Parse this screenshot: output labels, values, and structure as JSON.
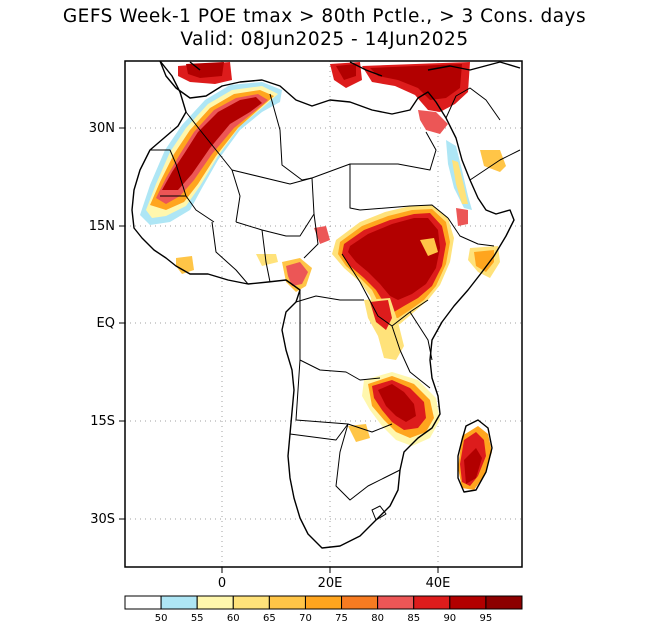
{
  "title": {
    "line1": "GEFS Week-1 POE tmax > 80th Pctle., > 3 Cons. days",
    "line2": "Valid: 08Jun2025 - 14Jun2025"
  },
  "map": {
    "lat_labels": [
      "30N",
      "15N",
      "EQ",
      "15S",
      "30S"
    ],
    "lon_labels": [
      "0",
      "20E",
      "40E"
    ]
  },
  "colorbar": {
    "labels": [
      "50",
      "55",
      "60",
      "65",
      "70",
      "75",
      "80",
      "85",
      "90",
      "95"
    ],
    "colors": [
      "#ffffff",
      "#aee6f5",
      "#fff7ad",
      "#ffe27a",
      "#ffc547",
      "#ffa51e",
      "#f77b21",
      "#ec5656",
      "#dd1c1c",
      "#b20000",
      "#8c0000"
    ]
  }
}
